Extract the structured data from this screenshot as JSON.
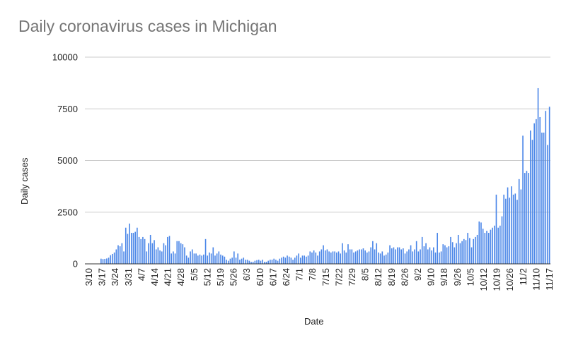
{
  "chart_data": {
    "type": "bar",
    "title": "Daily coronavirus cases in Michigan",
    "xlabel": "Date",
    "ylabel": "Daily cases",
    "ylim": [
      0,
      10000
    ],
    "yticks": [
      "0",
      "2500",
      "5000",
      "7500",
      "10000"
    ],
    "xticks": [
      "3/10",
      "3/17",
      "3/24",
      "3/31",
      "4/7",
      "4/14",
      "4/21",
      "4/28",
      "5/5",
      "5/12",
      "5/19",
      "5/26",
      "6/3",
      "6/10",
      "6/17",
      "6/24",
      "7/1",
      "7/8",
      "7/15",
      "7/22",
      "7/29",
      "8/5",
      "8/12",
      "8/19",
      "8/26",
      "9/2",
      "9/10",
      "9/18",
      "9/26",
      "10/5",
      "10/12",
      "10/19",
      "10/26",
      "11/2",
      "11/10",
      "11/17"
    ],
    "grid": true,
    "color": "#4a86e8",
    "values": [
      0,
      0,
      0,
      0,
      0,
      0,
      0,
      0,
      250,
      230,
      240,
      260,
      300,
      420,
      480,
      550,
      700,
      900,
      850,
      1000,
      600,
      1750,
      1450,
      1950,
      1500,
      1500,
      1550,
      1750,
      1300,
      1200,
      1300,
      1200,
      600,
      1000,
      1400,
      1000,
      1150,
      700,
      800,
      650,
      600,
      1000,
      900,
      1300,
      1350,
      500,
      600,
      500,
      1100,
      1100,
      1000,
      950,
      800,
      400,
      300,
      600,
      700,
      500,
      500,
      400,
      450,
      400,
      450,
      1200,
      400,
      550,
      500,
      800,
      400,
      500,
      600,
      450,
      400,
      350,
      200,
      150,
      250,
      300,
      600,
      300,
      500,
      200,
      250,
      300,
      200,
      200,
      150,
      100,
      100,
      150,
      180,
      200,
      150,
      200,
      100,
      100,
      150,
      200,
      200,
      250,
      200,
      150,
      250,
      300,
      350,
      300,
      400,
      350,
      300,
      200,
      300,
      400,
      500,
      300,
      400,
      400,
      350,
      400,
      600,
      550,
      650,
      550,
      400,
      600,
      700,
      900,
      650,
      700,
      600,
      550,
      600,
      600,
      550,
      600,
      500,
      1000,
      650,
      550,
      950,
      700,
      700,
      550,
      600,
      650,
      700,
      700,
      750,
      650,
      550,
      600,
      800,
      1100,
      700,
      1000,
      550,
      500,
      600,
      400,
      450,
      550,
      900,
      750,
      800,
      700,
      800,
      800,
      700,
      750,
      500,
      600,
      700,
      900,
      600,
      700,
      1100,
      600,
      700,
      1300,
      850,
      1000,
      700,
      800,
      650,
      800,
      550,
      1500,
      550,
      600,
      950,
      900,
      800,
      850,
      1300,
      1050,
      800,
      1000,
      1400,
      1000,
      1100,
      1200,
      1150,
      1500,
      1250,
      800,
      1200,
      1300,
      1400,
      2050,
      2000,
      1700,
      1500,
      1600,
      1500,
      1650,
      1750,
      1850,
      3350,
      1750,
      1850,
      2300,
      3350,
      3150,
      3700,
      3200,
      3750,
      3350,
      3400,
      3100,
      4100,
      3600,
      6200,
      4400,
      4500,
      4400,
      6450,
      6000,
      6800,
      7000,
      8500,
      7100,
      6350,
      6350,
      7400,
      5750,
      7600
    ]
  }
}
